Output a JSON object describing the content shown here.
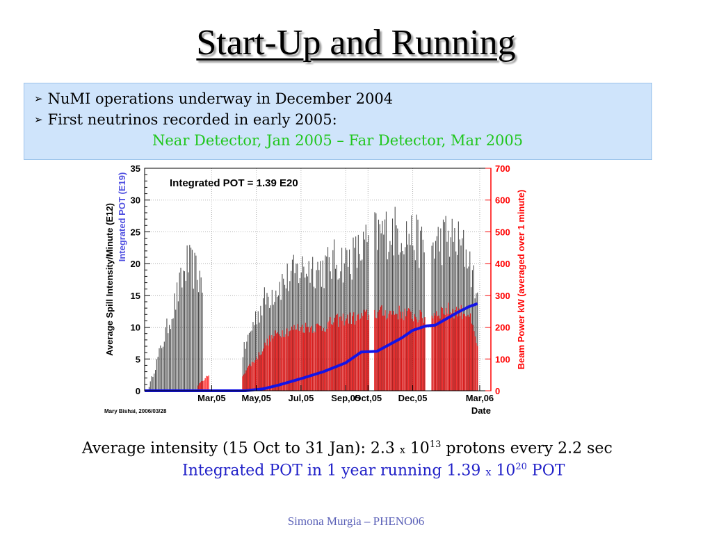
{
  "slide": {
    "title": "Start-Up and Running",
    "bullets": [
      "NuMI operations underway in December 2004",
      "First neutrinos recorded in early 2005:"
    ],
    "green_line": "Near Detector, Jan 2005 –  Far Detector, Mar 2005",
    "intensity_line": {
      "prefix": "Average intensity (15 Oct to 31 Jan): 2.3",
      "times": "x",
      "base": "10",
      "exponent": "13",
      "suffix": "protons every 2.2 sec"
    },
    "pot_line": {
      "prefix": "Integrated POT in 1 year running 1.39",
      "times": "x",
      "base": "10",
      "exponent": "20",
      "suffix": "POT"
    },
    "footer": "Simona Murgia – PHENO06"
  },
  "colors": {
    "bullet_box": "#cfe4fb",
    "green": "#21c61e",
    "blue_text": "#2020c8",
    "spill": "#000000",
    "power": "#ff0000",
    "pot": "#1414e6",
    "right_axis": "#ff0000"
  },
  "chart_data": {
    "type": "scatter",
    "annotation": "Integrated POT = 1.39 E20",
    "credit": "Mary Bishai, 2006/03/28",
    "xlabel": "Date",
    "ylabel_left": "Average Spill Intensity/Minute (E12)",
    "ylabel_left_2": "Integrated POT (E19)",
    "ylabel_right": "Beam Power kW (averaged over 1 minute)",
    "x_ticks": [
      "Mar,05",
      "May,05",
      "Jul,05",
      "Sep,05",
      "Oct,05",
      "Dec,05",
      "Mar,06"
    ],
    "x_tick_months": [
      3,
      5,
      7,
      9,
      10,
      12,
      15
    ],
    "xlim_months": [
      0,
      15.5
    ],
    "y_left_ticks": [
      0,
      5,
      10,
      15,
      20,
      25,
      30,
      35
    ],
    "y_left_range": [
      0,
      35
    ],
    "y_right_ticks": [
      0,
      100,
      200,
      300,
      400,
      500,
      600,
      700
    ],
    "y_right_range": [
      0,
      700
    ],
    "grid": true,
    "series": [
      {
        "name": "Integrated POT (E19)",
        "kind": "line",
        "points": [
          [
            0,
            0
          ],
          [
            2.5,
            0
          ],
          [
            4.5,
            0
          ],
          [
            5.3,
            0.3
          ],
          [
            6,
            0.9
          ],
          [
            7,
            1.9
          ],
          [
            8,
            3.0
          ],
          [
            9,
            4.4
          ],
          [
            9.7,
            6.1
          ],
          [
            10.4,
            6.2
          ],
          [
            11.5,
            8.3
          ],
          [
            12,
            9.5
          ],
          [
            12.6,
            10.2
          ],
          [
            13,
            10.3
          ],
          [
            13.4,
            11.1
          ],
          [
            14,
            12.3
          ],
          [
            14.5,
            13.2
          ],
          [
            14.9,
            13.7
          ]
        ]
      },
      {
        "name": "Average Spill Intensity/Minute (E12)",
        "kind": "scatter-band",
        "envelope": [
          [
            0.2,
            0.8
          ],
          [
            1.9,
            23.5
          ],
          [
            2.3,
            22
          ],
          [
            4.4,
            7
          ],
          [
            5.0,
            14
          ],
          [
            5.5,
            17.5
          ],
          [
            6.0,
            19.5
          ],
          [
            7.0,
            22.5
          ],
          [
            7.5,
            23
          ],
          [
            8.0,
            22.5
          ],
          [
            8.5,
            24
          ],
          [
            9.0,
            24
          ],
          [
            9.6,
            25.5
          ],
          [
            10.2,
            28.5
          ],
          [
            10.8,
            29.5
          ],
          [
            11.5,
            29.5
          ],
          [
            12.0,
            28.5
          ],
          [
            12.6,
            26
          ],
          [
            13.0,
            27
          ],
          [
            13.5,
            28.5
          ],
          [
            14.0,
            27.5
          ],
          [
            14.5,
            25
          ],
          [
            14.9,
            17
          ]
        ]
      },
      {
        "name": "Beam Power kW (averaged over 1 minute)",
        "kind": "scatter-band",
        "envelope": [
          [
            2.4,
            20
          ],
          [
            2.8,
            50
          ],
          [
            4.3,
            40
          ],
          [
            4.6,
            80
          ],
          [
            5.0,
            110
          ],
          [
            5.5,
            170
          ],
          [
            6.0,
            200
          ],
          [
            7.0,
            220
          ],
          [
            8.0,
            220
          ],
          [
            8.5,
            240
          ],
          [
            9.0,
            250
          ],
          [
            9.6,
            250
          ],
          [
            10.2,
            270
          ],
          [
            10.8,
            270
          ],
          [
            11.5,
            270
          ],
          [
            12.0,
            260
          ],
          [
            12.6,
            250
          ],
          [
            13.0,
            270
          ],
          [
            13.5,
            280
          ],
          [
            14.0,
            275
          ],
          [
            14.5,
            270
          ],
          [
            14.9,
            150
          ]
        ]
      }
    ],
    "gaps_months": [
      [
        10.05,
        10.25
      ],
      [
        12.55,
        12.85
      ]
    ]
  }
}
